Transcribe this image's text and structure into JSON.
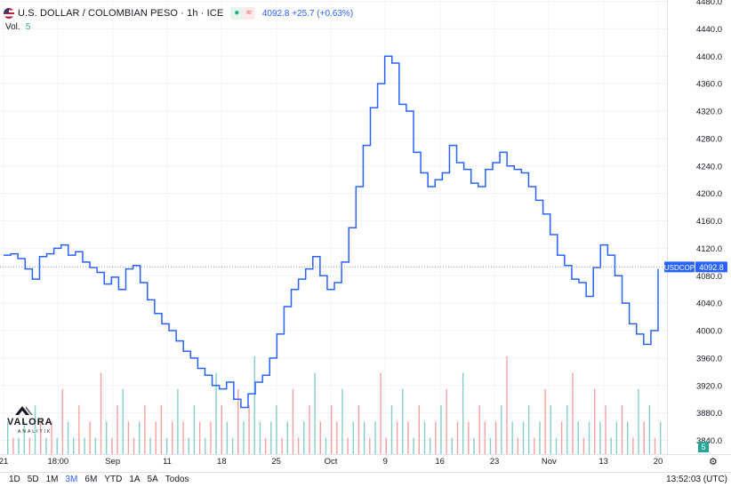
{
  "header": {
    "symbol": "U.S. DOLLAR / COLOMBIAN PESO · 1h · ICE",
    "flag_icon": "us-flag-icon",
    "indicator_a": "●",
    "indicator_b": "≈",
    "price_change": "4092.8 +25.7 (+0.63%)",
    "volume_label": "Vol.",
    "volume_value": "5"
  },
  "price_tag": {
    "ticker": "USDCOP",
    "value": "4092.8"
  },
  "volume_badge": "5",
  "toolbar": {
    "ranges": [
      "1D",
      "5D",
      "1M",
      "3M",
      "6M",
      "YTD",
      "1A",
      "5A",
      "Todos"
    ],
    "active_range": "3M",
    "clock": "13:52:03 (UTC)",
    "settings_icon": "gear-icon"
  },
  "watermark": {
    "word": "VALORA",
    "sub": "ANALITIK"
  },
  "colors": {
    "line": "#2962ff",
    "volume_up": "#26a69a",
    "volume_down": "#ef5350",
    "grid": "#f0f3fa"
  },
  "chart_data": {
    "type": "line",
    "y_axis_ticks": [
      "4480.0",
      "4440.0",
      "4400.0",
      "4360.0",
      "4320.0",
      "4280.0",
      "4240.0",
      "4200.0",
      "4160.0",
      "4120.0",
      "4080.0",
      "4040.0",
      "4000.0",
      "3960.0",
      "3920.0",
      "3880.0",
      "3840.0"
    ],
    "x_tick_labels": [
      "21",
      "18:00",
      "Sep",
      "11",
      "18",
      "25",
      "Oct",
      "9",
      "16",
      "23",
      "Nov",
      "13",
      "20"
    ],
    "ylim": [
      3820,
      4482
    ],
    "last_price": 4092.8,
    "series": [
      {
        "x": [
          "Aug 21",
          "Aug 22",
          "Aug 23",
          "Aug 24",
          "Aug 25",
          "Aug 26",
          "Aug 27",
          "Aug 28",
          "Aug 29",
          "Aug 30",
          "Aug 31",
          "Sep 1",
          "Sep 2",
          "Sep 3",
          "Sep 4",
          "Sep 5",
          "Sep 6",
          "Sep 7",
          "Sep 8",
          "Sep 9",
          "Sep 10",
          "Sep 11",
          "Sep 12",
          "Sep 13",
          "Sep 14",
          "Sep 15",
          "Sep 16",
          "Sep 17",
          "Sep 18",
          "Sep 19",
          "Sep 20",
          "Sep 21",
          "Sep 22",
          "Sep 23",
          "Sep 24",
          "Sep 25",
          "Sep 26",
          "Sep 27",
          "Sep 28",
          "Sep 29",
          "Sep 30",
          "Oct 1",
          "Oct 2",
          "Oct 3",
          "Oct 4",
          "Oct 5",
          "Oct 6",
          "Oct 7",
          "Oct 8",
          "Oct 9",
          "Oct 10",
          "Oct 11",
          "Oct 12",
          "Oct 13",
          "Oct 14",
          "Oct 15",
          "Oct 16",
          "Oct 17",
          "Oct 18",
          "Oct 19",
          "Oct 20",
          "Oct 21",
          "Oct 22",
          "Oct 23",
          "Oct 24",
          "Oct 25",
          "Oct 26",
          "Oct 27",
          "Oct 28",
          "Oct 29",
          "Oct 30",
          "Oct 31",
          "Nov 1",
          "Nov 2",
          "Nov 3",
          "Nov 4",
          "Nov 5",
          "Nov 6",
          "Nov 7",
          "Nov 8",
          "Nov 9",
          "Nov 10",
          "Nov 11",
          "Nov 12",
          "Nov 13",
          "Nov 14",
          "Nov 15",
          "Nov 16",
          "Nov 17",
          "Nov 18",
          "Nov 19",
          "Nov 20"
        ],
        "values": [
          4110,
          4112,
          4105,
          4090,
          4075,
          4108,
          4112,
          4120,
          4125,
          4110,
          4115,
          4100,
          4092,
          4085,
          4068,
          4078,
          4060,
          4090,
          4095,
          4070,
          4045,
          4025,
          4010,
          4000,
          3985,
          3970,
          3960,
          3945,
          3935,
          3920,
          3915,
          3925,
          3900,
          3888,
          3908,
          3925,
          3935,
          3960,
          3995,
          4035,
          4060,
          4075,
          4090,
          4108,
          4080,
          4060,
          4070,
          4100,
          4150,
          4210,
          4270,
          4325,
          4360,
          4400,
          4390,
          4330,
          4320,
          4260,
          4230,
          4210,
          4220,
          4230,
          4270,
          4245,
          4235,
          4215,
          4210,
          4235,
          4245,
          4260,
          4240,
          4235,
          4230,
          4210,
          4190,
          4170,
          4140,
          4110,
          4095,
          4075,
          4070,
          4050,
          4092,
          4125,
          4110,
          4080,
          4040,
          4010,
          3995,
          3980,
          4000,
          4090
        ]
      }
    ],
    "volume": {
      "values": [
        2,
        1,
        1,
        2,
        1,
        3,
        2,
        1,
        2,
        1,
        4,
        2,
        1,
        3,
        1,
        2,
        1,
        5,
        2,
        1,
        3,
        4,
        2,
        1,
        2,
        3,
        1,
        2,
        3,
        1,
        2,
        4,
        2,
        1,
        3,
        2,
        1,
        2,
        5,
        3,
        2,
        1,
        4,
        2,
        3,
        6,
        2,
        1,
        2,
        3,
        1,
        2,
        4,
        1,
        2,
        3,
        5,
        2,
        1,
        3,
        2,
        4,
        1,
        2,
        3,
        2,
        1,
        2,
        5,
        1,
        3,
        2,
        4,
        2,
        1,
        3,
        2,
        1,
        2,
        3,
        4,
        1,
        2,
        5,
        2,
        1,
        3,
        2,
        1,
        2,
        3,
        6,
        2,
        1,
        2,
        3,
        1,
        2,
        4,
        3,
        1,
        2,
        3,
        5,
        2,
        1,
        2,
        4,
        2,
        3,
        1,
        2,
        3,
        2,
        1,
        4,
        2,
        3,
        1,
        2
      ],
      "directions": [
        "u",
        "d",
        "u",
        "u",
        "d",
        "u",
        "d",
        "u",
        "d",
        "u",
        "d",
        "u",
        "u",
        "d",
        "u",
        "d",
        "u",
        "d",
        "u",
        "d",
        "d",
        "u",
        "d",
        "d",
        "u",
        "d",
        "u",
        "d",
        "d",
        "u",
        "d",
        "u",
        "d",
        "u",
        "u",
        "d",
        "u",
        "d",
        "u",
        "d",
        "u",
        "u",
        "d",
        "u",
        "d",
        "u",
        "u",
        "d",
        "u",
        "u",
        "d",
        "u",
        "d",
        "d",
        "u",
        "d",
        "u",
        "d",
        "u",
        "d",
        "d",
        "u",
        "d",
        "u",
        "d",
        "u",
        "d",
        "u",
        "d",
        "d",
        "u",
        "d",
        "u",
        "d",
        "u",
        "d",
        "u",
        "u",
        "d",
        "u",
        "d",
        "u",
        "d",
        "u",
        "d",
        "u",
        "d",
        "d",
        "u",
        "d",
        "u",
        "d",
        "u",
        "d",
        "u",
        "u",
        "d",
        "u",
        "d",
        "u",
        "u",
        "d",
        "u",
        "d",
        "u",
        "d",
        "u",
        "d",
        "u",
        "d",
        "u",
        "u",
        "d",
        "u",
        "d",
        "u",
        "d",
        "u",
        "d",
        "u"
      ]
    }
  }
}
